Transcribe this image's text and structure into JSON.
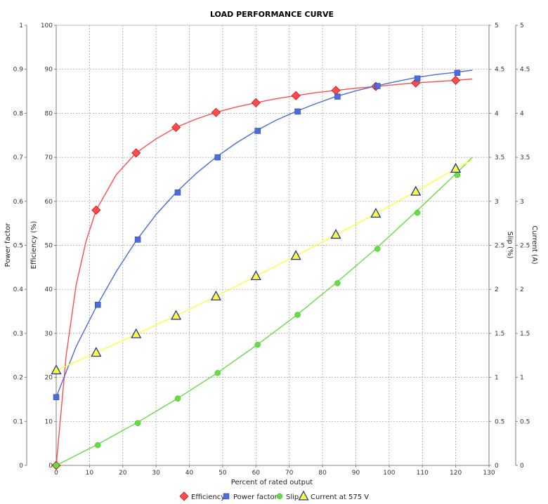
{
  "chart_data": {
    "type": "line",
    "title": "LOAD PERFORMANCE CURVE",
    "xlabel": "Percent of rated output",
    "xlim": [
      0,
      130
    ],
    "xticks": [
      0,
      10,
      20,
      30,
      40,
      50,
      60,
      70,
      80,
      90,
      100,
      110,
      120,
      130
    ],
    "axes": {
      "power_factor": {
        "label": "Power factor",
        "range": [
          0,
          1
        ],
        "ticks": [
          "0",
          "0.1",
          "0.2",
          "0.3",
          "0.4",
          "0.5",
          "0.6",
          "0.7",
          "0.8",
          "0.9",
          "1"
        ]
      },
      "efficiency": {
        "label": "Efficiency (%)",
        "range": [
          0,
          100
        ],
        "ticks": [
          "0",
          "10",
          "20",
          "30",
          "40",
          "50",
          "60",
          "70",
          "80",
          "90",
          "100"
        ]
      },
      "slip": {
        "label": "Slip (%)",
        "range": [
          0,
          5
        ],
        "ticks": [
          "0",
          "0.5",
          "1",
          "1.5",
          "2",
          "2.5",
          "3",
          "3.5",
          "4",
          "4.5",
          "5"
        ]
      },
      "current": {
        "label": "Current (A)",
        "range": [
          0,
          5
        ],
        "ticks": [
          "0",
          "0.5",
          "1",
          "1.5",
          "2",
          "2.5",
          "3",
          "3.5",
          "4",
          "4.5",
          "5"
        ]
      }
    },
    "grid": true,
    "legend_position": "bottom",
    "series": [
      {
        "name": "Efficiency",
        "axis": "efficiency",
        "color": "#ff4d4d",
        "marker": "diamond",
        "points": [
          [
            0,
            0
          ],
          [
            12,
            58
          ],
          [
            24,
            71
          ],
          [
            36,
            76.8
          ],
          [
            48,
            80.2
          ],
          [
            60,
            82.4
          ],
          [
            72,
            84.0
          ],
          [
            84,
            85.2
          ],
          [
            96,
            86.1
          ],
          [
            108,
            86.9
          ],
          [
            120,
            87.5
          ]
        ],
        "curve": [
          [
            0,
            0
          ],
          [
            3,
            25
          ],
          [
            6,
            41
          ],
          [
            9,
            51
          ],
          [
            12,
            58
          ],
          [
            18,
            66
          ],
          [
            24,
            71
          ],
          [
            30,
            74.2
          ],
          [
            36,
            76.8
          ],
          [
            42,
            78.7
          ],
          [
            48,
            80.2
          ],
          [
            54,
            81.4
          ],
          [
            60,
            82.4
          ],
          [
            66,
            83.3
          ],
          [
            72,
            84.0
          ],
          [
            78,
            84.7
          ],
          [
            84,
            85.2
          ],
          [
            90,
            85.7
          ],
          [
            96,
            86.1
          ],
          [
            102,
            86.5
          ],
          [
            108,
            86.9
          ],
          [
            114,
            87.2
          ],
          [
            120,
            87.5
          ],
          [
            125,
            87.8
          ]
        ]
      },
      {
        "name": "Power factor",
        "axis": "power_factor",
        "color": "#4d6bdb",
        "marker": "square",
        "points": [
          [
            0,
            0.155
          ],
          [
            12.5,
            0.365
          ],
          [
            24.5,
            0.513
          ],
          [
            36.5,
            0.62
          ],
          [
            48.5,
            0.7
          ],
          [
            60.5,
            0.76
          ],
          [
            72.5,
            0.804
          ],
          [
            84.5,
            0.838
          ],
          [
            96.5,
            0.862
          ],
          [
            108.5,
            0.879
          ],
          [
            120.5,
            0.892
          ]
        ],
        "curve": [
          [
            0,
            0.155
          ],
          [
            6,
            0.27
          ],
          [
            12,
            0.36
          ],
          [
            18,
            0.44
          ],
          [
            24,
            0.51
          ],
          [
            30,
            0.57
          ],
          [
            36,
            0.62
          ],
          [
            42,
            0.663
          ],
          [
            48,
            0.7
          ],
          [
            54,
            0.732
          ],
          [
            60,
            0.76
          ],
          [
            66,
            0.784
          ],
          [
            72,
            0.804
          ],
          [
            78,
            0.822
          ],
          [
            84,
            0.838
          ],
          [
            90,
            0.851
          ],
          [
            96,
            0.862
          ],
          [
            102,
            0.872
          ],
          [
            108,
            0.881
          ],
          [
            114,
            0.888
          ],
          [
            120,
            0.893
          ],
          [
            125,
            0.898
          ]
        ]
      },
      {
        "name": "Slip",
        "axis": "slip",
        "color": "#66dd44",
        "marker": "circle",
        "points": [
          [
            0,
            0
          ],
          [
            12.5,
            0.23
          ],
          [
            24.5,
            0.48
          ],
          [
            36.5,
            0.76
          ],
          [
            48.5,
            1.05
          ],
          [
            60.5,
            1.37
          ],
          [
            72.5,
            1.71
          ],
          [
            84.5,
            2.07
          ],
          [
            96.5,
            2.46
          ],
          [
            108.5,
            2.87
          ],
          [
            120.5,
            3.3
          ]
        ],
        "curve": [
          [
            0,
            0
          ],
          [
            12,
            0.23
          ],
          [
            24,
            0.48
          ],
          [
            36,
            0.75
          ],
          [
            48,
            1.04
          ],
          [
            60,
            1.36
          ],
          [
            72,
            1.7
          ],
          [
            84,
            2.07
          ],
          [
            96,
            2.46
          ],
          [
            108,
            2.88
          ],
          [
            120,
            3.31
          ],
          [
            125,
            3.5
          ]
        ]
      },
      {
        "name": "Current at 575 V",
        "axis": "current",
        "color": "#ffff33",
        "marker": "triangle",
        "points": [
          [
            0,
            1.08
          ],
          [
            12,
            1.28
          ],
          [
            24,
            1.49
          ],
          [
            36,
            1.7
          ],
          [
            48,
            1.92
          ],
          [
            60,
            2.15
          ],
          [
            72,
            2.38
          ],
          [
            84,
            2.62
          ],
          [
            96,
            2.86
          ],
          [
            108,
            3.11
          ],
          [
            120,
            3.37
          ]
        ],
        "curve": [
          [
            0,
            1.08
          ],
          [
            12,
            1.28
          ],
          [
            24,
            1.49
          ],
          [
            36,
            1.7
          ],
          [
            48,
            1.92
          ],
          [
            60,
            2.15
          ],
          [
            72,
            2.38
          ],
          [
            84,
            2.62
          ],
          [
            96,
            2.86
          ],
          [
            108,
            3.11
          ],
          [
            120,
            3.37
          ],
          [
            125,
            3.47
          ]
        ]
      }
    ]
  }
}
